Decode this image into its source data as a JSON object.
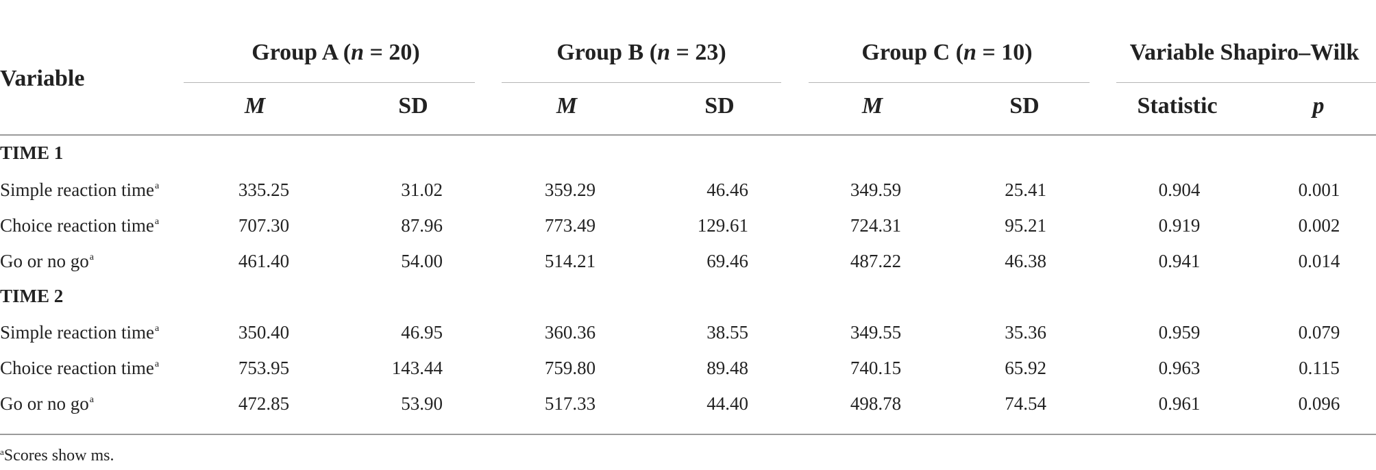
{
  "table": {
    "variable_header": "Variable",
    "groups": [
      {
        "name_pre": "Group A (",
        "n_letter": "n",
        "name_post": " = 20)"
      },
      {
        "name_pre": "Group B (",
        "n_letter": "n",
        "name_post": " = 23)"
      },
      {
        "name_pre": "Group C (",
        "n_letter": "n",
        "name_post": " = 10)"
      }
    ],
    "test_header": "Variable Shapiro–Wilk",
    "sub_headers": {
      "mean": "M",
      "sd": "SD",
      "statistic": "Statistic",
      "p": "p"
    },
    "sections": [
      {
        "title": "TIME 1",
        "rows": [
          {
            "label": "Simple reaction time",
            "sup": "a",
            "values": [
              "335.25",
              "31.02",
              "359.29",
              "46.46",
              "349.59",
              "25.41",
              "0.904",
              "0.001"
            ]
          },
          {
            "label": "Choice reaction time",
            "sup": "a",
            "values": [
              "707.30",
              "87.96",
              "773.49",
              "129.61",
              "724.31",
              "95.21",
              "0.919",
              "0.002"
            ]
          },
          {
            "label": "Go or no go",
            "sup": "a",
            "values": [
              "461.40",
              "54.00",
              "514.21",
              "69.46",
              "487.22",
              "46.38",
              "0.941",
              "0.014"
            ]
          }
        ]
      },
      {
        "title": "TIME 2",
        "rows": [
          {
            "label": "Simple reaction time",
            "sup": "a",
            "values": [
              "350.40",
              "46.95",
              "360.36",
              "38.55",
              "349.55",
              "35.36",
              "0.959",
              "0.079"
            ]
          },
          {
            "label": "Choice reaction time",
            "sup": "a",
            "values": [
              "753.95",
              "143.44",
              "759.80",
              "89.48",
              "740.15",
              "65.92",
              "0.963",
              "0.115"
            ]
          },
          {
            "label": "Go or no go",
            "sup": "a",
            "values": [
              "472.85",
              "53.90",
              "517.33",
              "44.40",
              "498.78",
              "74.54",
              "0.961",
              "0.096"
            ]
          }
        ]
      }
    ],
    "footnote": {
      "sup": "a",
      "text": "Scores show ms."
    }
  }
}
